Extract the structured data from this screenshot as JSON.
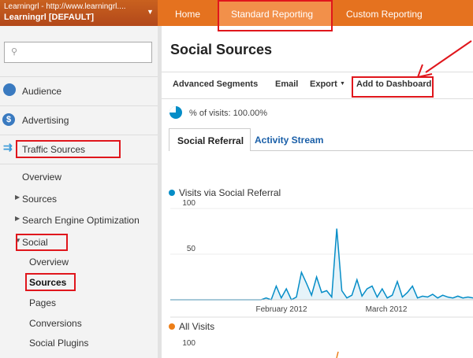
{
  "header": {
    "account_url": "Learningrl - http://www.learningrl....",
    "account_name": "Learningrl [DEFAULT]",
    "nav": [
      "Home",
      "Standard Reporting",
      "Custom Reporting"
    ]
  },
  "sidebar": {
    "sections": [
      "Audience",
      "Advertising",
      "Traffic Sources"
    ],
    "items": [
      "Overview",
      "Sources",
      "Search Engine Optimization",
      "Social"
    ],
    "social_items": [
      "Overview",
      "Sources",
      "Pages",
      "Conversions",
      "Social Plugins"
    ]
  },
  "main": {
    "title": "Social Sources",
    "toolbar": [
      "Advanced Segments",
      "Email",
      "Export",
      "Add to Dashboard"
    ],
    "visits_share": "% of visits: 100.00%",
    "tabs": [
      "Social Referral",
      "Activity Stream"
    ]
  },
  "chart": {
    "legend": "Visits via Social Referral",
    "color": "#058dc7",
    "ylim": [
      0,
      100
    ],
    "yticks": [
      50,
      100
    ],
    "x_labels": [
      "February 2012",
      "March 2012"
    ],
    "values": [
      0,
      0,
      0,
      0,
      0,
      0,
      0,
      0,
      0,
      0,
      0,
      0,
      0,
      0,
      0,
      0,
      0,
      0,
      0,
      2,
      0,
      15,
      2,
      12,
      0,
      3,
      30,
      18,
      5,
      25,
      8,
      10,
      3,
      78,
      10,
      2,
      5,
      22,
      4,
      12,
      15,
      3,
      12,
      2,
      5,
      20,
      3,
      8,
      15,
      2,
      4,
      3,
      6,
      2,
      5,
      3,
      2,
      4,
      2,
      3,
      2
    ]
  },
  "chart2": {
    "legend": "All Visits",
    "color": "#ed7e17",
    "ytick": 100
  }
}
